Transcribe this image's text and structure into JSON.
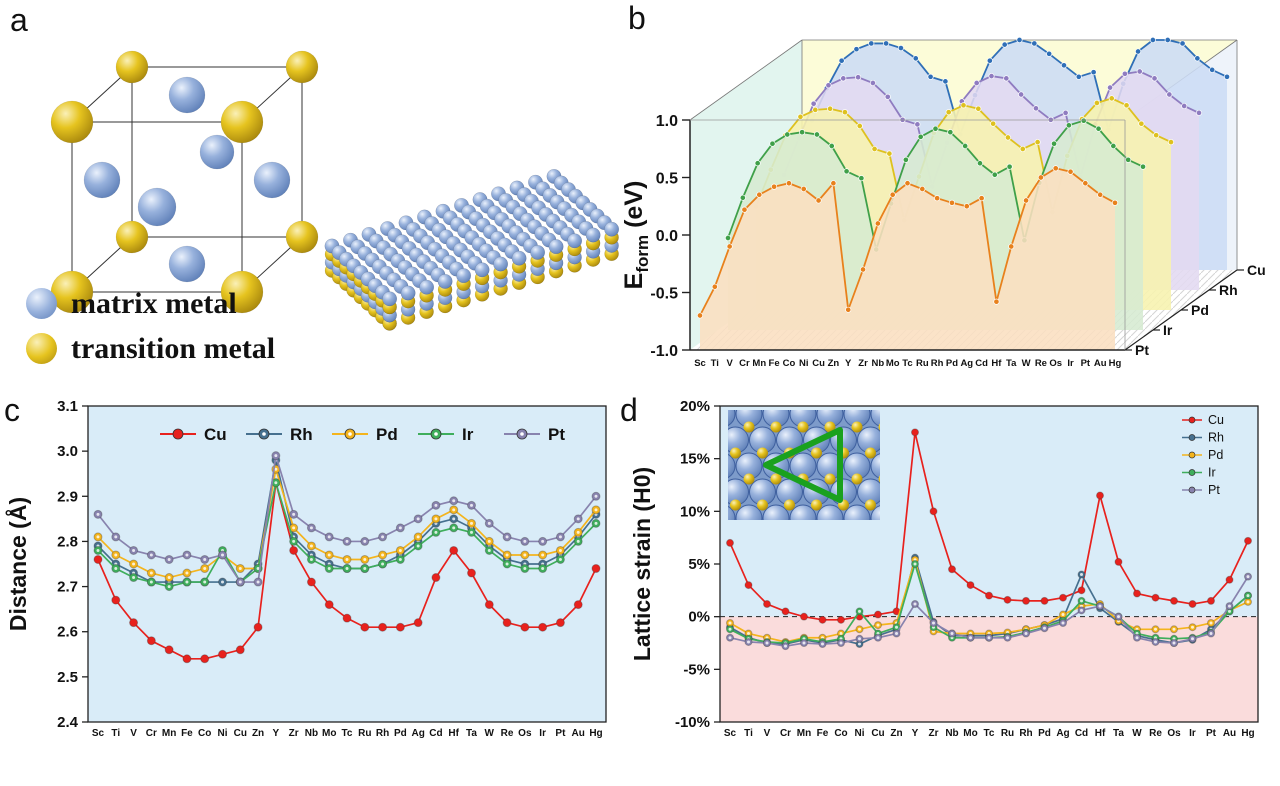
{
  "figure": {
    "panel_labels": {
      "a": "a",
      "b": "b",
      "c": "c",
      "d": "d"
    }
  },
  "panel_a": {
    "legend": [
      {
        "name": "matrix-metal",
        "label": "matrix metal",
        "color": "#8aa7d6"
      },
      {
        "name": "transition-metal",
        "label": "transition metal",
        "color": "#e2bc1c"
      }
    ]
  },
  "chart_data": [
    {
      "id": "b",
      "type": "area",
      "title": "",
      "xlabel": "",
      "ylabel_main": "E",
      "ylabel_sub": "form",
      "ylabel_rest": " (eV)",
      "ylim": [
        -1.0,
        1.0
      ],
      "yticks": [
        1.0,
        0.5,
        0.0,
        -0.5,
        -1.0
      ],
      "depth_labels_front_to_back": [
        "Pt",
        "Ir",
        "Pd",
        "Rh",
        "Cu"
      ],
      "categories": [
        "Sc",
        "Ti",
        "V",
        "Cr",
        "Mn",
        "Fe",
        "Co",
        "Ni",
        "Cu",
        "Zn",
        "Y",
        "Zr",
        "Nb",
        "Mo",
        "Tc",
        "Ru",
        "Rh",
        "Pd",
        "Ag",
        "Cd",
        "Hf",
        "Ta",
        "W",
        "Re",
        "Os",
        "Ir",
        "Pt",
        "Au",
        "Hg"
      ],
      "series_back_to_front": [
        {
          "name": "Cu",
          "stroke": "#2f6fb7",
          "fill": "#ccdcf5",
          "values": [
            0.3,
            0.58,
            0.82,
            0.92,
            0.97,
            0.97,
            0.93,
            0.84,
            0.68,
            0.64,
            0.18,
            0.52,
            0.82,
            0.96,
            1.0,
            0.97,
            0.88,
            0.78,
            0.68,
            0.72,
            0.22,
            0.62,
            0.9,
            1.0,
            1.0,
            0.97,
            0.84,
            0.74,
            0.68
          ]
        },
        {
          "name": "Rh",
          "stroke": "#8f7cc0",
          "fill": "#e2d9f1",
          "values": [
            0.0,
            0.32,
            0.62,
            0.78,
            0.84,
            0.85,
            0.8,
            0.68,
            0.48,
            0.44,
            -0.1,
            0.28,
            0.64,
            0.8,
            0.86,
            0.84,
            0.7,
            0.58,
            0.48,
            0.54,
            -0.02,
            0.44,
            0.76,
            0.88,
            0.9,
            0.84,
            0.7,
            0.6,
            0.54
          ]
        },
        {
          "name": "Pd",
          "stroke": "#dec11f",
          "fill": "#f7f2ae",
          "values": [
            -0.1,
            0.22,
            0.52,
            0.68,
            0.74,
            0.75,
            0.72,
            0.6,
            0.4,
            0.36,
            -0.22,
            0.16,
            0.54,
            0.72,
            0.78,
            0.75,
            0.62,
            0.5,
            0.4,
            0.46,
            -0.15,
            0.34,
            0.66,
            0.8,
            0.84,
            0.78,
            0.62,
            0.52,
            0.46
          ]
        },
        {
          "name": "Ir",
          "stroke": "#3fa049",
          "fill": "#d6ebd1",
          "values": [
            -0.2,
            0.15,
            0.45,
            0.62,
            0.7,
            0.72,
            0.7,
            0.6,
            0.38,
            0.32,
            -0.3,
            0.1,
            0.48,
            0.68,
            0.75,
            0.72,
            0.6,
            0.45,
            0.35,
            0.42,
            -0.22,
            0.28,
            0.62,
            0.78,
            0.82,
            0.75,
            0.6,
            0.48,
            0.42
          ]
        },
        {
          "name": "Pt",
          "stroke": "#e8811c",
          "fill": "#fbdfc0",
          "values": [
            -0.7,
            -0.45,
            -0.1,
            0.22,
            0.35,
            0.42,
            0.45,
            0.4,
            0.3,
            0.45,
            -0.65,
            -0.3,
            0.1,
            0.35,
            0.45,
            0.4,
            0.32,
            0.28,
            0.25,
            0.32,
            -0.58,
            -0.1,
            0.3,
            0.5,
            0.58,
            0.55,
            0.45,
            0.35,
            0.28
          ]
        }
      ]
    },
    {
      "id": "c",
      "type": "line",
      "title": "",
      "xlabel": "",
      "ylabel": "Distance (Å)",
      "ylim": [
        2.4,
        3.1
      ],
      "yticks": [
        2.4,
        2.5,
        2.6,
        2.7,
        2.8,
        2.9,
        3.0,
        3.1
      ],
      "legend_position": "top-center",
      "categories": [
        "Sc",
        "Ti",
        "V",
        "Cr",
        "Mn",
        "Fe",
        "Co",
        "Ni",
        "Cu",
        "Zn",
        "Y",
        "Zr",
        "Nb",
        "Mo",
        "Tc",
        "Ru",
        "Rh",
        "Pd",
        "Ag",
        "Cd",
        "Hf",
        "Ta",
        "W",
        "Re",
        "Os",
        "Ir",
        "Pt",
        "Au",
        "Hg"
      ],
      "series": [
        {
          "name": "Cu",
          "color": "#e8211d",
          "values": [
            2.76,
            2.67,
            2.62,
            2.58,
            2.56,
            2.54,
            2.54,
            2.55,
            2.56,
            2.61,
            2.93,
            2.78,
            2.71,
            2.66,
            2.63,
            2.61,
            2.61,
            2.61,
            2.62,
            2.72,
            2.78,
            2.73,
            2.66,
            2.62,
            2.61,
            2.61,
            2.62,
            2.66,
            2.74
          ]
        },
        {
          "name": "Rh",
          "color": "#46708f",
          "values": [
            2.79,
            2.75,
            2.73,
            2.71,
            2.71,
            2.71,
            2.71,
            2.71,
            2.71,
            2.75,
            2.98,
            2.81,
            2.77,
            2.75,
            2.74,
            2.74,
            2.75,
            2.77,
            2.8,
            2.84,
            2.85,
            2.83,
            2.79,
            2.76,
            2.75,
            2.75,
            2.77,
            2.81,
            2.86
          ]
        },
        {
          "name": "Pd",
          "color": "#f4b41c",
          "values": [
            2.81,
            2.77,
            2.75,
            2.73,
            2.72,
            2.73,
            2.74,
            2.77,
            2.74,
            2.74,
            2.96,
            2.83,
            2.79,
            2.77,
            2.76,
            2.76,
            2.77,
            2.78,
            2.81,
            2.85,
            2.87,
            2.84,
            2.8,
            2.77,
            2.77,
            2.77,
            2.78,
            2.82,
            2.87
          ]
        },
        {
          "name": "Ir",
          "color": "#3fae5c",
          "values": [
            2.78,
            2.74,
            2.72,
            2.71,
            2.7,
            2.71,
            2.71,
            2.78,
            2.71,
            2.74,
            2.93,
            2.8,
            2.76,
            2.74,
            2.74,
            2.74,
            2.75,
            2.76,
            2.79,
            2.82,
            2.83,
            2.82,
            2.78,
            2.75,
            2.74,
            2.74,
            2.76,
            2.8,
            2.84
          ]
        },
        {
          "name": "Pt",
          "color": "#8883ae",
          "values": [
            2.86,
            2.81,
            2.78,
            2.77,
            2.76,
            2.77,
            2.76,
            2.77,
            2.71,
            2.71,
            2.99,
            2.86,
            2.83,
            2.81,
            2.8,
            2.8,
            2.81,
            2.83,
            2.85,
            2.88,
            2.89,
            2.88,
            2.84,
            2.81,
            2.8,
            2.8,
            2.81,
            2.85,
            2.9
          ]
        }
      ]
    },
    {
      "id": "d",
      "type": "line",
      "title": "",
      "xlabel": "",
      "ylabel": "Lattice strain (H0)",
      "ylim": [
        -10,
        20
      ],
      "yticks": [
        20,
        15,
        10,
        5,
        0,
        -5,
        -10
      ],
      "ytick_suffix": "%",
      "legend_position": "top-right",
      "categories": [
        "Sc",
        "Ti",
        "V",
        "Cr",
        "Mn",
        "Fe",
        "Co",
        "Ni",
        "Cu",
        "Zn",
        "Y",
        "Zr",
        "Nb",
        "Mo",
        "Tc",
        "Ru",
        "Rh",
        "Pd",
        "Ag",
        "Cd",
        "Hf",
        "Ta",
        "W",
        "Re",
        "Os",
        "Ir",
        "Pt",
        "Au",
        "Hg"
      ],
      "series": [
        {
          "name": "Cu",
          "color": "#e8211d",
          "values": [
            7.0,
            3.0,
            1.2,
            0.5,
            0.0,
            -0.3,
            -0.3,
            0.0,
            0.2,
            0.5,
            17.5,
            10.0,
            4.5,
            3.0,
            2.0,
            1.6,
            1.5,
            1.5,
            1.8,
            2.5,
            11.5,
            5.2,
            2.2,
            1.8,
            1.5,
            1.2,
            1.5,
            3.5,
            7.2
          ]
        },
        {
          "name": "Rh",
          "color": "#46708f",
          "values": [
            -1.0,
            -2.0,
            -2.5,
            -2.6,
            -2.2,
            -2.5,
            -2.2,
            -2.6,
            -1.8,
            -1.2,
            5.6,
            -0.5,
            -1.8,
            -1.8,
            -1.8,
            -1.6,
            -1.2,
            -0.8,
            -0.2,
            4.0,
            0.8,
            -0.5,
            -1.8,
            -2.2,
            -2.5,
            -2.2,
            -1.2,
            0.5,
            2.0
          ]
        },
        {
          "name": "Pd",
          "color": "#f4b41c",
          "values": [
            -0.6,
            -1.6,
            -2.0,
            -2.4,
            -2.0,
            -2.0,
            -1.6,
            -1.2,
            -0.8,
            -0.6,
            5.4,
            -1.4,
            -1.6,
            -1.6,
            -1.6,
            -1.5,
            -1.2,
            -0.8,
            0.2,
            1.0,
            1.2,
            -0.4,
            -1.2,
            -1.2,
            -1.2,
            -1.0,
            -0.6,
            0.6,
            1.4
          ]
        },
        {
          "name": "Ir",
          "color": "#3fae5c",
          "values": [
            -1.2,
            -2.1,
            -2.4,
            -2.5,
            -2.1,
            -2.4,
            -2.1,
            0.5,
            -1.6,
            -1.0,
            5.0,
            -1.0,
            -2.0,
            -2.0,
            -2.0,
            -1.9,
            -1.5,
            -1.0,
            -0.4,
            1.5,
            1.0,
            0.0,
            -1.6,
            -2.0,
            -2.1,
            -2.0,
            -1.5,
            0.5,
            2.0
          ]
        },
        {
          "name": "Pt",
          "color": "#8883ae",
          "values": [
            -2.0,
            -2.4,
            -2.5,
            -2.8,
            -2.5,
            -2.6,
            -2.5,
            -2.1,
            -2.0,
            -1.6,
            1.2,
            -0.6,
            -1.6,
            -2.0,
            -2.0,
            -2.0,
            -1.6,
            -1.1,
            -0.6,
            0.6,
            1.0,
            0.0,
            -2.0,
            -2.4,
            -2.5,
            -2.1,
            -1.6,
            1.0,
            3.8
          ]
        }
      ]
    }
  ]
}
